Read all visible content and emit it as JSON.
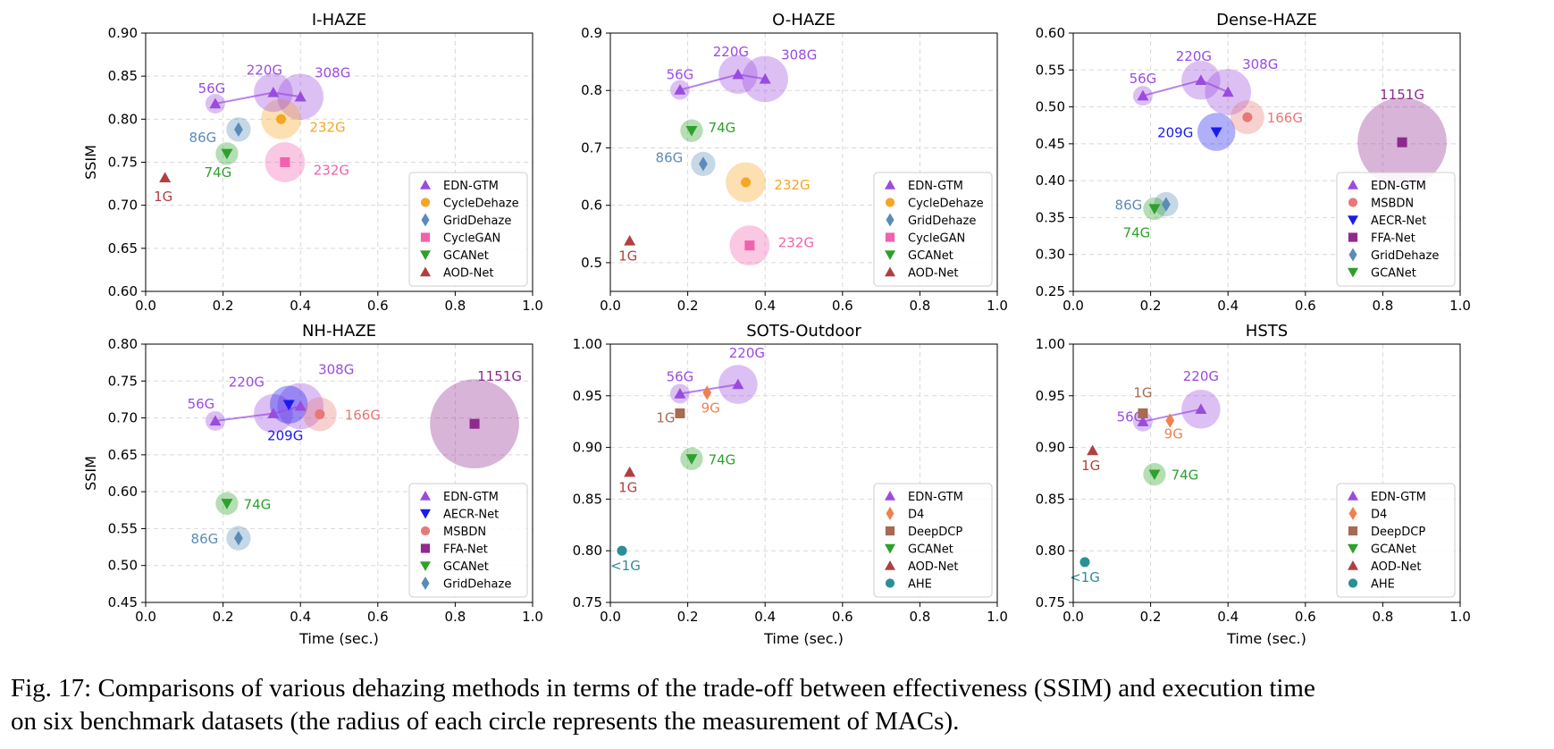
{
  "caption": {
    "line1": "Fig. 17: Comparisons of various dehazing methods in terms of the trade-off between effectiveness (SSIM) and execution time",
    "line2": "on six benchmark datasets (the radius of each circle represents the measurement of MACs)."
  },
  "colors": {
    "EDN-GTM": "#9a4be0",
    "CycleDehaze": "#f5a623",
    "GridDehaze": "#5b8bb8",
    "CycleGAN": "#f062ad",
    "GCANet": "#2ea02c",
    "AOD-Net": "#b04040",
    "MSBDN": "#e87878",
    "AECR-Net": "#1a1af0",
    "FFA-Net": "#8e2a8e",
    "D4": "#f08050",
    "DeepDCP": "#a86a50",
    "AHE": "#2a8f96"
  },
  "chart_data": [
    {
      "type": "scatter",
      "title": "I-HAZE",
      "xlabel": "",
      "ylabel": "SSIM",
      "xlim": [
        0.0,
        1.0
      ],
      "ylim": [
        0.6,
        0.9
      ],
      "xticks": [
        "0.0",
        "0.2",
        "0.4",
        "0.6",
        "0.8",
        "1.0"
      ],
      "yticks": [
        "0.60",
        "0.65",
        "0.70",
        "0.75",
        "0.80",
        "0.85",
        "0.90"
      ],
      "grid": true,
      "legend_position": "bottom-right",
      "legend": [
        "EDN-GTM",
        "CycleDehaze",
        "GridDehaze",
        "CycleGAN",
        "GCANet",
        "AOD-Net"
      ],
      "series": [
        {
          "name": "EDN-GTM",
          "marker": "triangle-up",
          "connected": true,
          "points": [
            {
              "x": 0.18,
              "y": 0.818,
              "macs": 56,
              "label": "56G"
            },
            {
              "x": 0.33,
              "y": 0.831,
              "macs": 220,
              "label": "220G"
            },
            {
              "x": 0.4,
              "y": 0.826,
              "macs": 308,
              "label": "308G"
            }
          ]
        },
        {
          "name": "CycleDehaze",
          "marker": "circle",
          "points": [
            {
              "x": 0.35,
              "y": 0.8,
              "macs": 232,
              "label": "232G"
            }
          ]
        },
        {
          "name": "GridDehaze",
          "marker": "diamond",
          "points": [
            {
              "x": 0.24,
              "y": 0.788,
              "macs": 86,
              "label": "86G"
            }
          ]
        },
        {
          "name": "CycleGAN",
          "marker": "square",
          "points": [
            {
              "x": 0.36,
              "y": 0.75,
              "macs": 232,
              "label": "232G"
            }
          ]
        },
        {
          "name": "GCANet",
          "marker": "triangle-down",
          "points": [
            {
              "x": 0.21,
              "y": 0.76,
              "macs": 74,
              "label": "74G"
            }
          ]
        },
        {
          "name": "AOD-Net",
          "marker": "triangle-up",
          "points": [
            {
              "x": 0.05,
              "y": 0.732,
              "macs": 1,
              "label": "1G"
            }
          ]
        }
      ]
    },
    {
      "type": "scatter",
      "title": "O-HAZE",
      "xlabel": "",
      "ylabel": "",
      "xlim": [
        0.0,
        1.0
      ],
      "ylim": [
        0.45,
        0.9
      ],
      "xticks": [
        "0.0",
        "0.2",
        "0.4",
        "0.6",
        "0.8",
        "1.0"
      ],
      "yticks": [
        "0.5",
        "0.6",
        "0.7",
        "0.8",
        "0.9"
      ],
      "grid": true,
      "legend_position": "bottom-right",
      "legend": [
        "EDN-GTM",
        "CycleDehaze",
        "GridDehaze",
        "CycleGAN",
        "GCANet",
        "AOD-Net"
      ],
      "series": [
        {
          "name": "EDN-GTM",
          "marker": "triangle-up",
          "connected": true,
          "points": [
            {
              "x": 0.18,
              "y": 0.801,
              "macs": 56,
              "label": "56G"
            },
            {
              "x": 0.33,
              "y": 0.828,
              "macs": 220,
              "label": "220G"
            },
            {
              "x": 0.4,
              "y": 0.82,
              "macs": 308,
              "label": "308G"
            }
          ]
        },
        {
          "name": "CycleDehaze",
          "marker": "circle",
          "points": [
            {
              "x": 0.35,
              "y": 0.64,
              "macs": 232,
              "label": "232G"
            }
          ]
        },
        {
          "name": "GridDehaze",
          "marker": "diamond",
          "points": [
            {
              "x": 0.24,
              "y": 0.672,
              "macs": 86,
              "label": "86G"
            }
          ]
        },
        {
          "name": "CycleGAN",
          "marker": "square",
          "points": [
            {
              "x": 0.36,
              "y": 0.53,
              "macs": 232,
              "label": "232G"
            }
          ]
        },
        {
          "name": "GCANet",
          "marker": "triangle-down",
          "points": [
            {
              "x": 0.21,
              "y": 0.73,
              "macs": 74,
              "label": "74G"
            }
          ]
        },
        {
          "name": "AOD-Net",
          "marker": "triangle-up",
          "points": [
            {
              "x": 0.05,
              "y": 0.538,
              "macs": 1,
              "label": "1G"
            }
          ]
        }
      ]
    },
    {
      "type": "scatter",
      "title": "Dense-HAZE",
      "xlabel": "",
      "ylabel": "",
      "xlim": [
        0.0,
        1.0
      ],
      "ylim": [
        0.25,
        0.6
      ],
      "xticks": [
        "0.0",
        "0.2",
        "0.4",
        "0.6",
        "0.8",
        "1.0"
      ],
      "yticks": [
        "0.25",
        "0.30",
        "0.35",
        "0.40",
        "0.45",
        "0.50",
        "0.55",
        "0.60"
      ],
      "grid": true,
      "legend_position": "bottom-right",
      "legend": [
        "EDN-GTM",
        "MSBDN",
        "AECR-Net",
        "FFA-Net",
        "GridDehaze",
        "GCANet"
      ],
      "series": [
        {
          "name": "EDN-GTM",
          "marker": "triangle-up",
          "connected": true,
          "points": [
            {
              "x": 0.18,
              "y": 0.515,
              "macs": 56,
              "label": "56G"
            },
            {
              "x": 0.33,
              "y": 0.536,
              "macs": 220,
              "label": "220G"
            },
            {
              "x": 0.4,
              "y": 0.52,
              "macs": 308,
              "label": "308G"
            }
          ]
        },
        {
          "name": "MSBDN",
          "marker": "circle",
          "points": [
            {
              "x": 0.45,
              "y": 0.486,
              "macs": 166,
              "label": "166G"
            }
          ]
        },
        {
          "name": "AECR-Net",
          "marker": "triangle-down",
          "points": [
            {
              "x": 0.37,
              "y": 0.466,
              "macs": 209,
              "label": "209G"
            }
          ]
        },
        {
          "name": "FFA-Net",
          "marker": "square",
          "points": [
            {
              "x": 0.85,
              "y": 0.452,
              "macs": 1151,
              "label": "1151G"
            }
          ]
        },
        {
          "name": "GridDehaze",
          "marker": "diamond",
          "points": [
            {
              "x": 0.24,
              "y": 0.368,
              "macs": 86,
              "label": "86G"
            }
          ]
        },
        {
          "name": "GCANet",
          "marker": "triangle-down",
          "points": [
            {
              "x": 0.21,
              "y": 0.362,
              "macs": 74,
              "label": "74G"
            }
          ]
        }
      ]
    },
    {
      "type": "scatter",
      "title": "NH-HAZE",
      "xlabel": "Time (sec.)",
      "ylabel": "SSIM",
      "xlim": [
        0.0,
        1.0
      ],
      "ylim": [
        0.45,
        0.8
      ],
      "xticks": [
        "0.0",
        "0.2",
        "0.4",
        "0.6",
        "0.8",
        "1.0"
      ],
      "yticks": [
        "0.45",
        "0.50",
        "0.55",
        "0.60",
        "0.65",
        "0.70",
        "0.75",
        "0.80"
      ],
      "grid": true,
      "legend_position": "bottom-right",
      "legend": [
        "EDN-GTM",
        "AECR-Net",
        "MSBDN",
        "FFA-Net",
        "GCANet",
        "GridDehaze"
      ],
      "series": [
        {
          "name": "EDN-GTM",
          "marker": "triangle-up",
          "connected": true,
          "points": [
            {
              "x": 0.18,
              "y": 0.696,
              "macs": 56,
              "label": "56G"
            },
            {
              "x": 0.33,
              "y": 0.706,
              "macs": 220,
              "label": "220G"
            },
            {
              "x": 0.4,
              "y": 0.716,
              "macs": 308,
              "label": "308G"
            }
          ]
        },
        {
          "name": "AECR-Net",
          "marker": "triangle-down",
          "points": [
            {
              "x": 0.37,
              "y": 0.718,
              "macs": 209,
              "label": "209G"
            }
          ]
        },
        {
          "name": "MSBDN",
          "marker": "circle",
          "points": [
            {
              "x": 0.45,
              "y": 0.705,
              "macs": 166,
              "label": "166G"
            }
          ]
        },
        {
          "name": "FFA-Net",
          "marker": "square",
          "points": [
            {
              "x": 0.85,
              "y": 0.692,
              "macs": 1151,
              "label": "1151G"
            }
          ]
        },
        {
          "name": "GCANet",
          "marker": "triangle-down",
          "points": [
            {
              "x": 0.21,
              "y": 0.584,
              "macs": 74,
              "label": "74G"
            }
          ]
        },
        {
          "name": "GridDehaze",
          "marker": "diamond",
          "points": [
            {
              "x": 0.24,
              "y": 0.537,
              "macs": 86,
              "label": "86G"
            }
          ]
        }
      ]
    },
    {
      "type": "scatter",
      "title": "SOTS-Outdoor",
      "xlabel": "Time (sec.)",
      "ylabel": "",
      "xlim": [
        0.0,
        1.0
      ],
      "ylim": [
        0.75,
        1.0
      ],
      "xticks": [
        "0.0",
        "0.2",
        "0.4",
        "0.6",
        "0.8",
        "1.0"
      ],
      "yticks": [
        "0.75",
        "0.80",
        "0.85",
        "0.90",
        "0.95",
        "1.00"
      ],
      "grid": true,
      "legend_position": "bottom-right",
      "legend": [
        "EDN-GTM",
        "D4",
        "DeepDCP",
        "GCANet",
        "AOD-Net",
        "AHE"
      ],
      "series": [
        {
          "name": "EDN-GTM",
          "marker": "triangle-up",
          "connected": true,
          "points": [
            {
              "x": 0.18,
              "y": 0.952,
              "macs": 56,
              "label": "56G"
            },
            {
              "x": 0.33,
              "y": 0.961,
              "macs": 220,
              "label": "220G"
            }
          ]
        },
        {
          "name": "D4",
          "marker": "diamond",
          "points": [
            {
              "x": 0.25,
              "y": 0.953,
              "macs": 9,
              "label": "9G"
            }
          ]
        },
        {
          "name": "DeepDCP",
          "marker": "square",
          "points": [
            {
              "x": 0.18,
              "y": 0.933,
              "macs": 1,
              "label": "1G"
            }
          ]
        },
        {
          "name": "GCANet",
          "marker": "triangle-down",
          "points": [
            {
              "x": 0.21,
              "y": 0.889,
              "macs": 74,
              "label": "74G"
            }
          ]
        },
        {
          "name": "AOD-Net",
          "marker": "triangle-up",
          "points": [
            {
              "x": 0.05,
              "y": 0.876,
              "macs": 1,
              "label": "1G"
            }
          ]
        },
        {
          "name": "AHE",
          "marker": "circle",
          "points": [
            {
              "x": 0.03,
              "y": 0.8,
              "macs": 0.5,
              "label": "<1G"
            }
          ]
        }
      ]
    },
    {
      "type": "scatter",
      "title": "HSTS",
      "xlabel": "Time (sec.)",
      "ylabel": "",
      "xlim": [
        0.0,
        1.0
      ],
      "ylim": [
        0.75,
        1.0
      ],
      "xticks": [
        "0.0",
        "0.2",
        "0.4",
        "0.6",
        "0.8",
        "1.0"
      ],
      "yticks": [
        "0.75",
        "0.80",
        "0.85",
        "0.90",
        "0.95",
        "1.00"
      ],
      "grid": true,
      "legend_position": "bottom-right",
      "legend": [
        "EDN-GTM",
        "D4",
        "DeepDCP",
        "GCANet",
        "AOD-Net",
        "AHE"
      ],
      "series": [
        {
          "name": "EDN-GTM",
          "marker": "triangle-up",
          "connected": true,
          "points": [
            {
              "x": 0.18,
              "y": 0.925,
              "macs": 56,
              "label": "56G"
            },
            {
              "x": 0.33,
              "y": 0.937,
              "macs": 220,
              "label": "220G"
            }
          ]
        },
        {
          "name": "D4",
          "marker": "diamond",
          "points": [
            {
              "x": 0.25,
              "y": 0.926,
              "macs": 9,
              "label": "9G"
            }
          ]
        },
        {
          "name": "DeepDCP",
          "marker": "square",
          "points": [
            {
              "x": 0.18,
              "y": 0.933,
              "macs": 1,
              "label": "1G"
            }
          ]
        },
        {
          "name": "GCANet",
          "marker": "triangle-down",
          "points": [
            {
              "x": 0.21,
              "y": 0.874,
              "macs": 74,
              "label": "74G"
            }
          ]
        },
        {
          "name": "AOD-Net",
          "marker": "triangle-up",
          "points": [
            {
              "x": 0.05,
              "y": 0.897,
              "macs": 1,
              "label": "1G"
            }
          ]
        },
        {
          "name": "AHE",
          "marker": "circle",
          "points": [
            {
              "x": 0.03,
              "y": 0.789,
              "macs": 0.5,
              "label": "<1G"
            }
          ]
        }
      ]
    }
  ]
}
